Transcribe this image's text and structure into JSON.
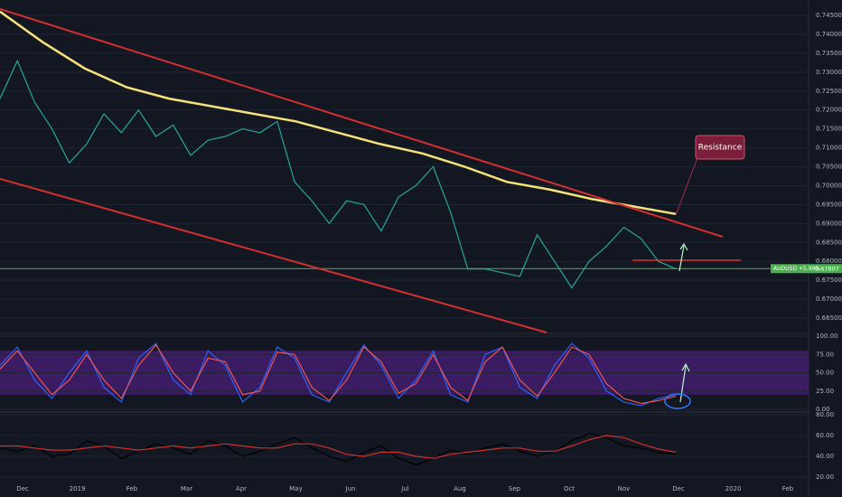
{
  "chart_data": [
    {
      "type": "line",
      "x_labels": [
        "Dec",
        "2019",
        "Feb",
        "Mar",
        "Apr",
        "May",
        "Jun",
        "Jul",
        "Aug",
        "Sep",
        "Oct",
        "Nov",
        "Dec",
        "2020",
        "Feb"
      ],
      "series": [
        {
          "color": "#26a69a",
          "values": [
            0.723,
            0.733,
            0.722,
            0.715,
            0.706,
            0.711,
            0.719,
            0.714,
            0.72,
            0.713,
            0.716,
            0.708,
            0.712,
            0.713,
            0.715,
            0.714,
            0.717,
            0.701,
            0.696,
            0.69,
            0.696,
            0.695,
            0.688,
            0.697,
            0.7,
            0.705,
            0.693,
            0.678,
            0.678,
            0.677,
            0.676,
            0.687,
            0.68,
            0.673,
            0.68,
            0.684,
            0.689,
            0.686,
            0.68,
            0.678
          ]
        },
        {
          "color": "#f5e27a",
          "values": [
            0.746,
            0.738,
            0.731,
            0.726,
            0.723,
            0.721,
            0.719,
            0.717,
            0.714,
            0.711,
            0.7085,
            0.705,
            0.701,
            0.699,
            0.6965,
            0.6945,
            0.6925
          ]
        }
      ],
      "annotation": "Resistance",
      "price_label": "AUDUSD +5.99%",
      "last_price": 0.67807,
      "ylim": [
        0.66118,
        0.74906
      ],
      "yticks": [
        {
          "value": 0.665,
          "label": "0.66500"
        },
        {
          "value": 0.67,
          "label": "0.67000"
        },
        {
          "value": 0.675,
          "label": "0.67500"
        },
        {
          "value": 0.68,
          "label": "0.68000"
        },
        {
          "value": 0.685,
          "label": "0.68500"
        },
        {
          "value": 0.69,
          "label": "0.69000"
        },
        {
          "value": 0.695,
          "label": "0.69500"
        },
        {
          "value": 0.7,
          "label": "0.70000"
        },
        {
          "value": 0.705,
          "label": "0.70500"
        },
        {
          "value": 0.71,
          "label": "0.71000"
        },
        {
          "value": 0.715,
          "label": "0.71500"
        },
        {
          "value": 0.72,
          "label": "0.72000"
        },
        {
          "value": 0.725,
          "label": "0.72500"
        },
        {
          "value": 0.73,
          "label": "0.73000"
        },
        {
          "value": 0.735,
          "label": "0.73500"
        },
        {
          "value": 0.74,
          "label": "0.74000"
        },
        {
          "value": 0.745,
          "label": "0.74500"
        }
      ],
      "grid": true
    },
    {
      "type": "line",
      "series": [
        {
          "color": "#2962ff",
          "values": [
            60,
            85,
            40,
            15,
            50,
            80,
            30,
            10,
            70,
            90,
            40,
            20,
            80,
            60,
            10,
            30,
            85,
            70,
            20,
            10,
            50,
            88,
            60,
            15,
            40,
            80,
            20,
            10,
            75,
            85,
            30,
            15,
            60,
            90,
            70,
            25,
            10,
            5,
            15,
            20
          ]
        },
        {
          "color": "#ef5350",
          "values": [
            55,
            80,
            50,
            20,
            40,
            75,
            40,
            15,
            60,
            88,
            50,
            25,
            70,
            65,
            20,
            25,
            78,
            75,
            30,
            12,
            40,
            85,
            65,
            22,
            35,
            75,
            30,
            12,
            65,
            85,
            40,
            18,
            50,
            85,
            75,
            35,
            15,
            8,
            12,
            18
          ]
        }
      ],
      "band": [
        20,
        80
      ],
      "ylim": [
        0,
        100
      ],
      "yticks": [
        {
          "value": 0,
          "label": "0.00"
        },
        {
          "value": 25,
          "label": "25.00"
        },
        {
          "value": 50,
          "label": "50.00"
        },
        {
          "value": 75,
          "label": "75.00"
        },
        {
          "value": 100,
          "label": "100.00"
        }
      ],
      "grid": true
    },
    {
      "type": "line",
      "series": [
        {
          "color": "#000000",
          "values": [
            48,
            45,
            50,
            40,
            42,
            55,
            50,
            38,
            45,
            52,
            48,
            42,
            55,
            50,
            40,
            45,
            52,
            58,
            48,
            40,
            35,
            44,
            50,
            38,
            32,
            38,
            46,
            42,
            48,
            52,
            45,
            40,
            45,
            55,
            62,
            58,
            50,
            48,
            44,
            42
          ]
        },
        {
          "color": "#d32f2f",
          "values": [
            50,
            50,
            48,
            46,
            46,
            48,
            50,
            48,
            46,
            48,
            50,
            48,
            50,
            52,
            50,
            48,
            48,
            52,
            52,
            48,
            42,
            40,
            44,
            44,
            40,
            38,
            42,
            44,
            46,
            48,
            48,
            45,
            45,
            50,
            56,
            60,
            58,
            52,
            47,
            44
          ]
        }
      ],
      "ylim": [
        20,
        80
      ],
      "yticks": [
        {
          "value": 20,
          "label": "20.00"
        },
        {
          "value": 40,
          "label": "40.00"
        },
        {
          "value": 60,
          "label": "60.00"
        },
        {
          "value": 80,
          "label": "80.00"
        }
      ],
      "grid": true
    }
  ]
}
